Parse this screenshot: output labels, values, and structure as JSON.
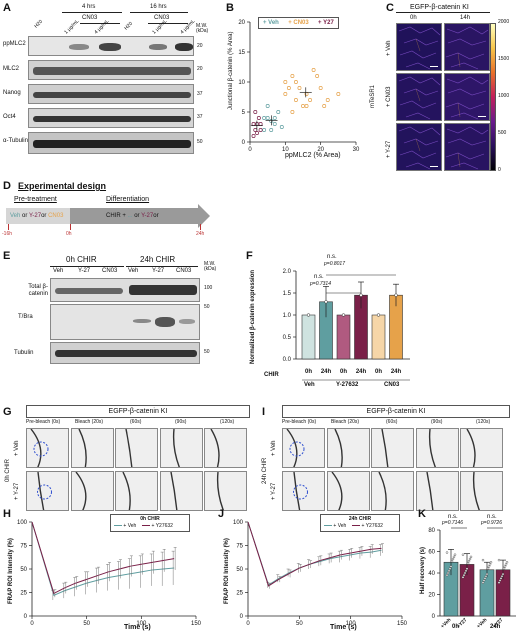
{
  "panels": {
    "A": {
      "label": "A",
      "time_4": "4 hrs",
      "time_16": "16 hrs",
      "cn03": "CN03",
      "lanes": [
        "H20",
        "1 μg/mL",
        "4 μg/mL",
        "H20",
        "1 μg/mL",
        "4 μg/mL"
      ],
      "mw_header": "M.W. (kDa)",
      "blots": [
        {
          "name": "ppMLC2",
          "mw": "20"
        },
        {
          "name": "MLC2",
          "mw": "20"
        },
        {
          "name": "Nanog",
          "mw": "37"
        },
        {
          "name": "Oct4",
          "mw": "37"
        },
        {
          "name": "α-Tubulin",
          "mw": "50"
        }
      ]
    },
    "B": {
      "label": "B",
      "legend_veh": "+ Veh",
      "legend_cn03": "+ CN03",
      "legend_y27": "+ Y27",
      "ylabel": "Junctional β-catenin (% Area)",
      "xlabel": "ppMLC2 (% Area)",
      "yticks": [
        "0",
        "5",
        "10",
        "15",
        "20"
      ],
      "xticks": [
        "0",
        "10",
        "20",
        "30"
      ]
    },
    "C": {
      "label": "C",
      "title": "EGFP-β-catenin KI",
      "col_0h": "0h",
      "col_14h": "14h",
      "side_label": "mTeSR1",
      "rows": [
        "+ Veh",
        "+ CN03",
        "+ Y-27"
      ],
      "scale": "20 μm",
      "colorbar_ticks": [
        "2000",
        "1500",
        "1000",
        "500",
        "0"
      ]
    },
    "D": {
      "label": "D",
      "title": "Experimental design",
      "pretreatment": "Pre-treatment",
      "differentiation": "Differentiation",
      "veh": "Veh",
      "or1": "or",
      "y27": "Y-27",
      "or2": "or",
      "cn03": "CN03",
      "chir": "CHIR +",
      "dots": "...",
      "or3": "or",
      "y27b": "Y-27",
      "or4": "or",
      "t_m16": "-16h",
      "t_0": "0h",
      "t_24": "24h"
    },
    "E": {
      "label": "E",
      "group_0h": "0h CHIR",
      "group_24h": "24h CHIR",
      "lanes": [
        "Veh",
        "Y-27",
        "CN03",
        "Veh",
        "Y-27",
        "CN03"
      ],
      "mw_header": "M.W. (kDa)",
      "blots": [
        {
          "name": "Total β-catenin",
          "mw": "100"
        },
        {
          "name": "T/Bra",
          "mw": "50"
        },
        {
          "name": "Tubulin",
          "mw": "50"
        }
      ]
    },
    "F": {
      "label": "F",
      "ylabel": "Normalized β-catenin expression",
      "ns1": "n.s.",
      "p1": "p=0.8017",
      "ns2": "n.s.",
      "p2": "p=0.7314",
      "row_chir": "CHIR",
      "times": [
        "0h",
        "24h",
        "0h",
        "24h",
        "0h",
        "24h"
      ],
      "groups": [
        "Veh",
        "Y-27632",
        "CN03"
      ],
      "yticks": [
        "0.0",
        "0.5",
        "1.0",
        "1.5",
        "2.0"
      ]
    },
    "G": {
      "label": "G",
      "title": "EGFP-β-catenin KI",
      "side": "0h CHIR",
      "rows": [
        "+ Veh",
        "+ Y-27"
      ],
      "cols": [
        "Pre-bleach (0s)",
        "Bleach (20s)",
        "(60s)",
        "(90s)",
        "(120s)"
      ],
      "scale": "5 μm"
    },
    "I": {
      "label": "I",
      "title": "EGFP-β-catenin KI",
      "side": "24h CHIR",
      "rows": [
        "+ Veh",
        "+ Y-27"
      ],
      "cols": [
        "Pre-bleach (0s)",
        "Bleach (20s)",
        "(60s)",
        "(90s)",
        "(120s)"
      ],
      "scale": "5 μm"
    },
    "H": {
      "label": "H",
      "legend_title": "0h CHIR",
      "legend_veh": "+ Veh",
      "legend_y27": "+ Y27632",
      "ylabel": "FRAP ROI Intensity (%)",
      "xlabel": "Time (s)",
      "yticks": [
        "0",
        "25",
        "50",
        "75",
        "100"
      ],
      "xticks": [
        "0",
        "50",
        "100",
        "150"
      ]
    },
    "J": {
      "label": "J",
      "legend_title": "24h CHIR",
      "legend_veh": "+ Veh",
      "legend_y27": "+ Y27632",
      "ylabel": "FRAP ROI Intensity (%)",
      "xlabel": "Time (s)",
      "yticks": [
        "0",
        "25",
        "50",
        "75",
        "100"
      ],
      "xticks": [
        "0",
        "50",
        "100",
        "150"
      ]
    },
    "K": {
      "label": "K",
      "ylabel": "Half recovery (s)",
      "ns1": "n.s.",
      "p1": "p=0.7146",
      "ns2": "n.s.",
      "p2": "p=0.9726",
      "cats": [
        "+Veh",
        "+Y27",
        "+Veh",
        "+Y27"
      ],
      "groups": [
        "0h",
        "24h"
      ],
      "yticks": [
        "0",
        "20",
        "40",
        "60",
        "80"
      ]
    }
  },
  "colors": {
    "veh": "#5f9ea0",
    "cn03": "#e6a24a",
    "y27": "#7a2048",
    "veh_light": "#cfe3e0",
    "cn03_light": "#f6d6a8",
    "y27_light": "#b05a80"
  },
  "chart_data": [
    {
      "panel": "B",
      "type": "scatter",
      "xlabel": "ppMLC2 (% Area)",
      "ylabel": "Junctional β-catenin (% Area)",
      "xlim": [
        0,
        30
      ],
      "ylim": [
        0,
        20
      ],
      "series": [
        {
          "name": "+ Veh",
          "points": [
            [
              4,
              2
            ],
            [
              5,
              4
            ],
            [
              6,
              3.5
            ],
            [
              7,
              4
            ],
            [
              8,
              5
            ],
            [
              9,
              2.5
            ],
            [
              5,
              6
            ],
            [
              6,
              2
            ],
            [
              7,
              3
            ],
            [
              4,
              4
            ]
          ]
        },
        {
          "name": "+ CN03",
          "points": [
            [
              10,
              8
            ],
            [
              12,
              11
            ],
            [
              13,
              7
            ],
            [
              14,
              9
            ],
            [
              15,
              6
            ],
            [
              16,
              8
            ],
            [
              18,
              12
            ],
            [
              20,
              9
            ],
            [
              22,
              7
            ],
            [
              10,
              10
            ],
            [
              12,
              5
            ],
            [
              16,
              6
            ],
            [
              19,
              11
            ],
            [
              21,
              6
            ],
            [
              13,
              10
            ],
            [
              25,
              8
            ],
            [
              11,
              9
            ],
            [
              17,
              7
            ]
          ]
        },
        {
          "name": "+ Y27",
          "points": [
            [
              1,
              1
            ],
            [
              2,
              3
            ],
            [
              1.5,
              2
            ],
            [
              2.5,
              4
            ],
            [
              3,
              2
            ],
            [
              1,
              3
            ],
            [
              2,
              1.5
            ],
            [
              3,
              3
            ],
            [
              1.5,
              5
            ]
          ]
        }
      ]
    },
    {
      "panel": "F",
      "type": "bar",
      "categories": [
        "Veh 0h",
        "Veh 24h",
        "Y-27632 0h",
        "Y-27632 24h",
        "CN03 0h",
        "CN03 24h"
      ],
      "values": [
        1.0,
        1.3,
        1.0,
        1.45,
        1.0,
        1.45
      ],
      "errors": [
        0.0,
        0.35,
        0.0,
        0.3,
        0.0,
        0.25
      ],
      "ylim": [
        0,
        2.0
      ]
    },
    {
      "panel": "H",
      "type": "line",
      "xlabel": "Time (s)",
      "ylabel": "FRAP ROI Intensity (%)",
      "xlim": [
        0,
        150
      ],
      "ylim": [
        0,
        100
      ],
      "x": [
        0,
        20,
        30,
        40,
        50,
        60,
        70,
        80,
        90,
        100,
        110,
        120,
        130
      ],
      "series": [
        {
          "name": "+ Veh",
          "values": [
            100,
            22,
            27,
            31,
            35,
            38,
            41,
            43,
            45,
            47,
            49,
            50,
            51
          ],
          "errors": [
            0,
            5,
            8,
            10,
            12,
            13,
            14,
            15,
            16,
            17,
            17,
            18,
            18
          ]
        },
        {
          "name": "+ Y27632",
          "values": [
            100,
            24,
            30,
            35,
            39,
            43,
            47,
            50,
            53,
            55,
            57,
            59,
            61
          ],
          "errors": [
            0,
            4,
            6,
            7,
            8,
            9,
            10,
            10,
            11,
            11,
            12,
            12,
            12
          ]
        }
      ]
    },
    {
      "panel": "J",
      "type": "line",
      "xlabel": "Time (s)",
      "ylabel": "FRAP ROI Intensity (%)",
      "xlim": [
        0,
        150
      ],
      "ylim": [
        0,
        100
      ],
      "x": [
        0,
        20,
        30,
        40,
        50,
        60,
        70,
        80,
        90,
        100,
        110,
        120,
        130
      ],
      "series": [
        {
          "name": "+ Veh",
          "values": [
            100,
            33,
            40,
            46,
            51,
            55,
            58,
            61,
            63,
            65,
            67,
            68,
            70
          ],
          "errors": [
            0,
            3,
            4,
            4,
            5,
            5,
            5,
            5,
            6,
            6,
            6,
            6,
            6
          ]
        },
        {
          "name": "+ Y27632",
          "values": [
            100,
            32,
            39,
            45,
            51,
            55,
            59,
            62,
            65,
            67,
            69,
            71,
            72
          ],
          "errors": [
            0,
            3,
            3,
            4,
            4,
            4,
            5,
            5,
            5,
            5,
            5,
            5,
            5
          ]
        }
      ]
    },
    {
      "panel": "K",
      "type": "bar",
      "categories": [
        "0h +Veh",
        "0h +Y27",
        "24h +Veh",
        "24h +Y27"
      ],
      "values": [
        50,
        48,
        43,
        43
      ],
      "errors": [
        12,
        10,
        7,
        9
      ],
      "ylim": [
        0,
        80
      ]
    }
  ]
}
